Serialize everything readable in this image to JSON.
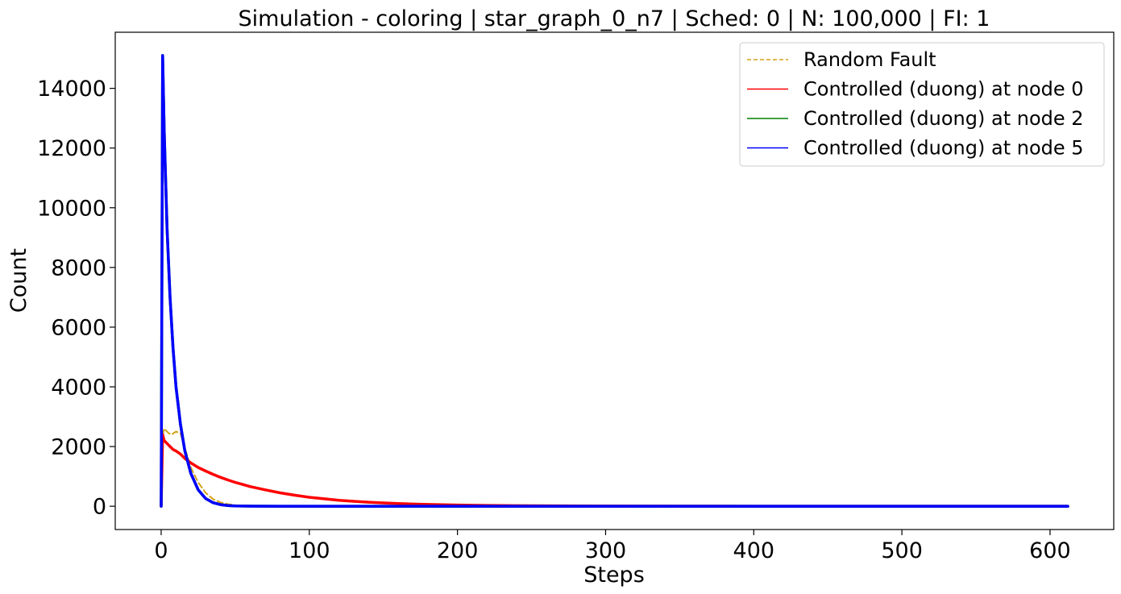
{
  "chart_data": {
    "type": "line",
    "title": "Simulation - coloring | star_graph_0_n7 | Sched: 0 | N: 100,000 | FI: 1",
    "xlabel": "Steps",
    "ylabel": "Count",
    "xlim": [
      -31,
      643
    ],
    "ylim": [
      -780,
      15880
    ],
    "xticks": [
      0,
      100,
      200,
      300,
      400,
      500,
      600
    ],
    "xtick_labels": [
      "0",
      "100",
      "200",
      "300",
      "400",
      "500",
      "600"
    ],
    "yticks": [
      0,
      2000,
      4000,
      6000,
      8000,
      10000,
      12000,
      14000
    ],
    "ytick_labels": [
      "0",
      "2000",
      "4000",
      "6000",
      "8000",
      "10000",
      "12000",
      "14000"
    ],
    "grid": false,
    "legend_position": "upper right",
    "series": [
      {
        "name": "Random Fault",
        "color": "#d4a017",
        "style": "dashed",
        "x": [
          0,
          1,
          2,
          3,
          5,
          7,
          10,
          13,
          16,
          20,
          25,
          30,
          35,
          40,
          45,
          50,
          60,
          80,
          120,
          200,
          300,
          400,
          500,
          612
        ],
        "y": [
          0,
          2350,
          2600,
          2550,
          2450,
          2400,
          2500,
          2450,
          1950,
          1300,
          800,
          450,
          240,
          130,
          70,
          35,
          12,
          4,
          1,
          0,
          0,
          0,
          0,
          0
        ]
      },
      {
        "name": "Controlled (duong) at node 0",
        "color": "#ff0000",
        "style": "solid",
        "x": [
          0,
          1,
          2,
          4,
          6,
          8,
          10,
          13,
          16,
          20,
          25,
          30,
          35,
          40,
          45,
          50,
          55,
          60,
          70,
          80,
          90,
          100,
          110,
          120,
          130,
          140,
          150,
          160,
          180,
          200,
          220,
          250,
          300,
          350,
          400,
          500,
          612
        ],
        "y": [
          0,
          2400,
          2200,
          2100,
          2000,
          1900,
          1850,
          1750,
          1600,
          1450,
          1300,
          1180,
          1070,
          970,
          880,
          800,
          730,
          660,
          550,
          450,
          370,
          300,
          250,
          200,
          165,
          135,
          110,
          90,
          60,
          42,
          28,
          16,
          7,
          3,
          1,
          0,
          0
        ]
      },
      {
        "name": "Controlled (duong) at node 2",
        "color": "#008000",
        "style": "solid",
        "x": [
          0,
          1,
          2,
          4,
          6,
          8,
          10,
          13,
          16,
          20,
          25,
          30,
          35,
          40,
          45,
          50,
          60,
          80,
          120,
          200,
          300,
          400,
          500,
          612
        ],
        "y": [
          0,
          15100,
          12600,
          9300,
          7000,
          5300,
          4000,
          2750,
          1850,
          1100,
          550,
          260,
          120,
          55,
          25,
          10,
          3,
          0,
          0,
          0,
          0,
          0,
          0,
          0
        ]
      },
      {
        "name": "Controlled (duong) at node 5",
        "color": "#0000ff",
        "style": "solid",
        "x": [
          0,
          1,
          2,
          4,
          6,
          8,
          10,
          13,
          16,
          20,
          25,
          30,
          35,
          40,
          45,
          50,
          60,
          80,
          120,
          200,
          300,
          400,
          500,
          612
        ],
        "y": [
          0,
          15100,
          12600,
          9300,
          7000,
          5300,
          4000,
          2750,
          1850,
          1100,
          550,
          260,
          120,
          55,
          25,
          10,
          3,
          0,
          0,
          0,
          0,
          0,
          0,
          0
        ]
      }
    ]
  }
}
